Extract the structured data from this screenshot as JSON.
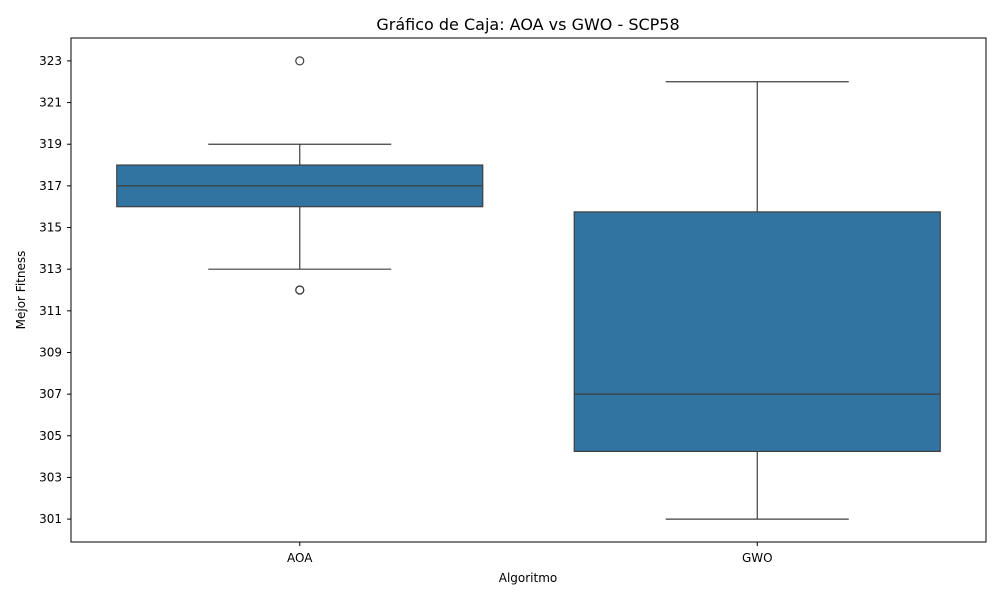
{
  "chart_data": {
    "type": "box",
    "title": "Gráfico de Caja: AOA vs GWO - SCP58",
    "xlabel": "Algoritmo",
    "ylabel": "Mejor Fitness",
    "ylim": [
      299.9,
      324.1
    ],
    "yticks": [
      301,
      303,
      305,
      307,
      309,
      311,
      313,
      315,
      317,
      319,
      321,
      323
    ],
    "grid": false,
    "box_color": "#3274a1",
    "line_color": "#3f3f3f",
    "categories": [
      "AOA",
      "GWO"
    ],
    "boxes": [
      {
        "category": "AOA",
        "q1": 316,
        "median": 317,
        "q3": 318,
        "whisker_low": 313,
        "whisker_high": 319,
        "outliers": [
          323,
          312,
          312
        ]
      },
      {
        "category": "GWO",
        "q1": 304.25,
        "median": 307,
        "q3": 315.75,
        "whisker_low": 301,
        "whisker_high": 322,
        "outliers": []
      }
    ]
  }
}
